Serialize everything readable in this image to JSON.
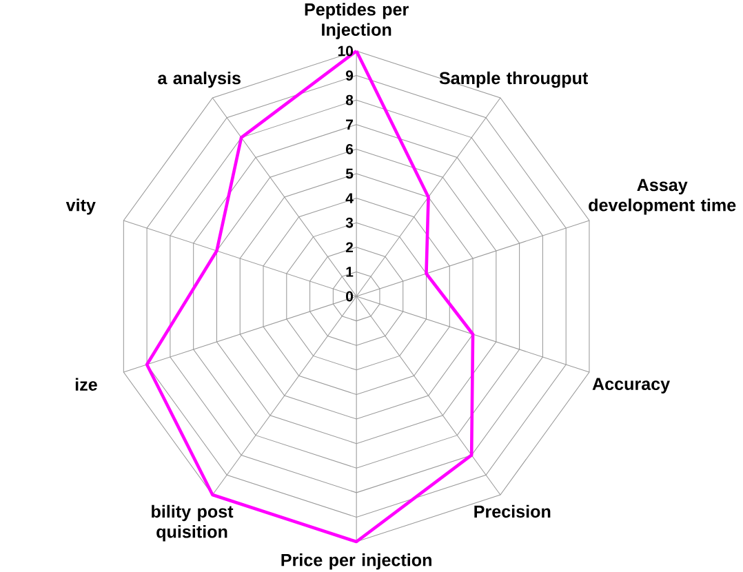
{
  "chart_data": {
    "type": "radar",
    "categories": [
      "Peptides per Injection",
      "Sample througput",
      "Assay development time",
      "Accuracy",
      "Precision",
      "Price per injection",
      "bility post quisition",
      "ize",
      "vity",
      "a analysis"
    ],
    "series": [
      {
        "color": "#ff00ff",
        "values": [
          10,
          5,
          3,
          5,
          8,
          10,
          10,
          9,
          6,
          8
        ]
      }
    ],
    "ylim": [
      0,
      10
    ],
    "yticks": [
      0,
      1,
      2,
      3,
      4,
      5,
      6,
      7,
      8,
      9,
      10
    ],
    "grid": true,
    "line_style": "solid"
  }
}
